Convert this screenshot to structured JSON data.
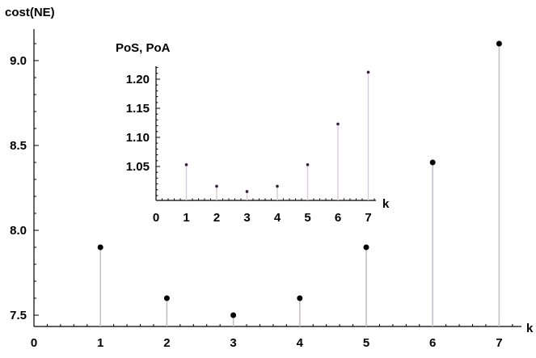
{
  "chart_data": [
    {
      "type": "scatter",
      "style": "stem",
      "title": "",
      "xlabel": "k",
      "ylabel": "cost(NE)",
      "x": [
        1,
        2,
        3,
        4,
        5,
        6,
        7
      ],
      "y": [
        7.9,
        7.6,
        7.5,
        7.6,
        7.9,
        8.4,
        9.1
      ],
      "xlim": [
        0,
        7.5
      ],
      "ylim": [
        7.45,
        9.18
      ],
      "x_ticks": [
        "0",
        "1",
        "2",
        "3",
        "4",
        "5",
        "6",
        "7"
      ],
      "y_ticks": [
        "7.5",
        "8.0",
        "8.5",
        "9.0"
      ],
      "grid": false,
      "point_color": "#000000",
      "stem_color": "#c8c0c8"
    },
    {
      "type": "scatter",
      "style": "stem",
      "placement": "inset",
      "title": "",
      "xlabel": "k",
      "ylabel": "PoS, PoA",
      "x": [
        1,
        2,
        3,
        4,
        5,
        6,
        7
      ],
      "y": [
        1.053,
        1.016,
        1.007,
        1.016,
        1.053,
        1.123,
        1.212
      ],
      "xlim": [
        0,
        7.2
      ],
      "ylim": [
        1.0,
        1.225
      ],
      "x_ticks": [
        "0",
        "1",
        "2",
        "3",
        "4",
        "5",
        "6",
        "7"
      ],
      "y_ticks": [
        "1.05",
        "1.10",
        "1.15",
        "1.20"
      ],
      "grid": false,
      "point_color": "#3a1a4a",
      "stem_color": "#dcc8dc"
    }
  ]
}
